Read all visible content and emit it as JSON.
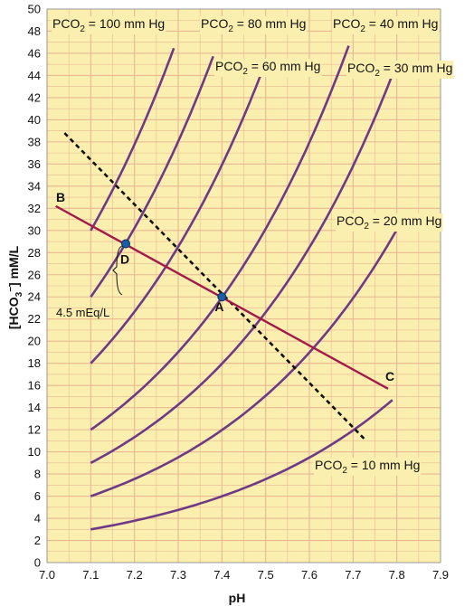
{
  "chart_data": {
    "type": "line",
    "xlabel": "pH",
    "ylabel_main": "[HCO",
    "ylabel_sub": "3",
    "ylabel_sup": "−",
    "ylabel_tail": "] mM/L",
    "xlim": [
      7.0,
      7.9
    ],
    "ylim": [
      0,
      50
    ],
    "x_ticks": [
      "7.0",
      "7.1",
      "7.2",
      "7.3",
      "7.4",
      "7.5",
      "7.6",
      "7.7",
      "7.8",
      "7.9"
    ],
    "y_ticks": [
      "0",
      "2",
      "4",
      "6",
      "8",
      "10",
      "12",
      "14",
      "16",
      "18",
      "20",
      "22",
      "24",
      "26",
      "28",
      "30",
      "32",
      "34",
      "36",
      "38",
      "40",
      "42",
      "44",
      "46",
      "48",
      "50"
    ],
    "grid": true,
    "colors": {
      "background": "#fbefb0",
      "grid": "#e8b893",
      "isobar": "#6e3a86",
      "buffer_line": "#a31a4a",
      "dashed_line": "#111111",
      "point": "#1a5ea8"
    },
    "isobar_prefix": "PCO",
    "isobar_prefix_sub": "2",
    "isobars": [
      {
        "pco2": 100,
        "label": " = 100 mm Hg",
        "pH_range": [
          7.1,
          7.29
        ]
      },
      {
        "pco2": 80,
        "label": " = 80 mm Hg",
        "pH_range": [
          7.1,
          7.38
        ]
      },
      {
        "pco2": 60,
        "label": " = 60 mm Hg",
        "pH_range": [
          7.1,
          7.49
        ]
      },
      {
        "pco2": 40,
        "label": " = 40 mm Hg",
        "pH_range": [
          7.1,
          7.69
        ]
      },
      {
        "pco2": 30,
        "label": " = 30 mm Hg",
        "pH_range": [
          7.1,
          7.79
        ]
      },
      {
        "pco2": 20,
        "label": " = 20 mm Hg",
        "pH_range": [
          7.1,
          7.8
        ]
      },
      {
        "pco2": 10,
        "label": " = 10 mm Hg",
        "pH_range": [
          7.1,
          7.79
        ]
      }
    ],
    "buffer_line": {
      "x": [
        7.02,
        7.78
      ],
      "y": [
        32.2,
        15.7
      ]
    },
    "dashed_line": {
      "x": [
        7.04,
        7.73
      ],
      "y": [
        38.8,
        11.0
      ]
    },
    "points": [
      {
        "label": "A",
        "pH": 7.4,
        "hco3": 24.0,
        "marker": true
      },
      {
        "label": "D",
        "pH": 7.18,
        "hco3": 28.8,
        "marker": true
      },
      {
        "label": "B",
        "pH": 7.02,
        "hco3": 32.2,
        "marker": false
      },
      {
        "label": "C",
        "pH": 7.78,
        "hco3": 15.7,
        "marker": false
      }
    ],
    "annotation": "4.5 mEq/L"
  }
}
